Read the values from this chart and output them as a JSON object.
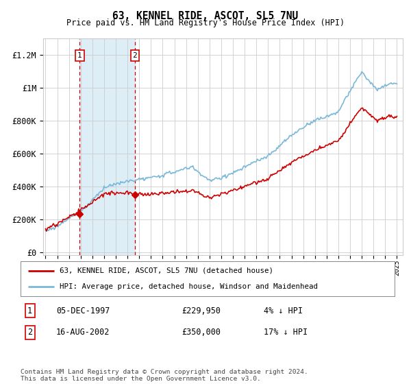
{
  "title": "63, KENNEL RIDE, ASCOT, SL5 7NU",
  "subtitle": "Price paid vs. HM Land Registry's House Price Index (HPI)",
  "ylabel_ticks": [
    "£0",
    "£200K",
    "£400K",
    "£600K",
    "£800K",
    "£1M",
    "£1.2M"
  ],
  "ytick_vals": [
    0,
    200000,
    400000,
    600000,
    800000,
    1000000,
    1200000
  ],
  "ylim": [
    -20000,
    1300000
  ],
  "xlim_start": 1994.8,
  "xlim_end": 2025.5,
  "sale1_date": 1997.92,
  "sale1_price": 229950,
  "sale1_label": "1",
  "sale1_text": "05-DEC-1997",
  "sale1_amount": "£229,950",
  "sale1_pct": "4% ↓ HPI",
  "sale2_date": 2002.62,
  "sale2_price": 350000,
  "sale2_label": "2",
  "sale2_text": "16-AUG-2002",
  "sale2_amount": "£350,000",
  "sale2_pct": "17% ↓ HPI",
  "hpi_color": "#7ab8d9",
  "price_color": "#cc0000",
  "shade_color": "#ddeef7",
  "vline_color": "#cc0000",
  "legend_line1": "63, KENNEL RIDE, ASCOT, SL5 7NU (detached house)",
  "legend_line2": "HPI: Average price, detached house, Windsor and Maidenhead",
  "footnote": "Contains HM Land Registry data © Crown copyright and database right 2024.\nThis data is licensed under the Open Government Licence v3.0.",
  "background_color": "#ffffff",
  "grid_color": "#cccccc"
}
